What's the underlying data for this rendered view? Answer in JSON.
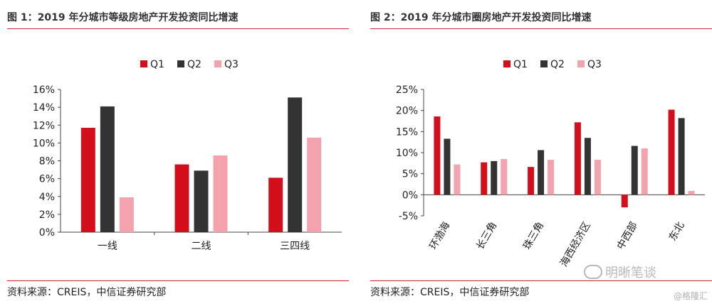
{
  "colors": {
    "q1": "#d40f1c",
    "q2": "#333333",
    "q3": "#f4a3ae",
    "rule": "#c9252c"
  },
  "chart_data": [
    {
      "type": "bar",
      "title": "图 1：2019 年分城市等级房地产开发投资同比增速",
      "categories": [
        "一线",
        "二线",
        "三四线"
      ],
      "series": [
        {
          "name": "Q1",
          "values": [
            11.7,
            7.6,
            6.1
          ]
        },
        {
          "name": "Q2",
          "values": [
            14.1,
            6.9,
            15.1
          ]
        },
        {
          "name": "Q3",
          "values": [
            3.9,
            8.6,
            10.6
          ]
        }
      ],
      "ylim": [
        0,
        16
      ],
      "yticks": [
        0,
        2,
        4,
        6,
        8,
        10,
        12,
        14,
        16
      ],
      "ytick_labels": [
        "0%",
        "2%",
        "4%",
        "6%",
        "8%",
        "10%",
        "12%",
        "14%",
        "16%"
      ],
      "legend": "top-center",
      "grid": false,
      "source": "资料来源：CREIS，中信证券研究部"
    },
    {
      "type": "bar",
      "title": "图 2：2019 年分城市圈房地产开发投资同比增速",
      "categories": [
        "环渤海",
        "长三角",
        "珠三角",
        "海西经济区",
        "中西部",
        "东北"
      ],
      "series": [
        {
          "name": "Q1",
          "values": [
            18.6,
            7.7,
            6.6,
            17.2,
            -3.0,
            20.2
          ]
        },
        {
          "name": "Q2",
          "values": [
            13.3,
            8.0,
            10.6,
            13.5,
            11.6,
            18.2
          ]
        },
        {
          "name": "Q3",
          "values": [
            7.2,
            8.5,
            8.3,
            8.3,
            11.0,
            0.9
          ]
        }
      ],
      "ylim": [
        -5,
        25
      ],
      "yticks": [
        -5,
        0,
        5,
        10,
        15,
        20,
        25
      ],
      "ytick_labels": [
        "-5%",
        "0%",
        "5%",
        "10%",
        "15%",
        "20%",
        "25%"
      ],
      "legend": "top-center",
      "grid": false,
      "source": "资料来源：CREIS，中信证券研究部"
    }
  ],
  "watermark": {
    "text": "明晰笔谈",
    "subtext": "@格隆汇"
  }
}
